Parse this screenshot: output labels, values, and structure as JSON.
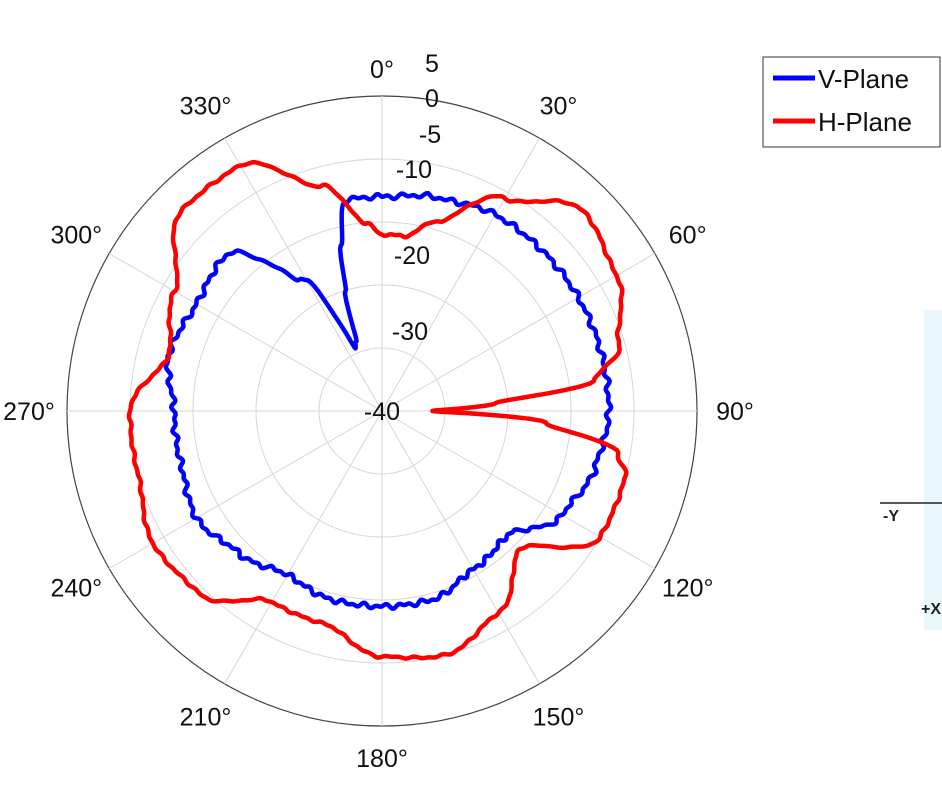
{
  "chart_data": {
    "type": "line",
    "polar": true,
    "angle_ticks": [
      "0°",
      "30°",
      "60°",
      "90°",
      "120°",
      "150°",
      "180°",
      "210°",
      "240°",
      "270°",
      "300°",
      "330°"
    ],
    "radial_ticks": [
      "5",
      "0",
      "-5",
      "-10",
      "-20",
      "-30",
      "-40"
    ],
    "rlim": [
      -40,
      10
    ],
    "grid": true,
    "legend_position": "top-right",
    "series": [
      {
        "name": "V-Plane",
        "color": "#0000ff",
        "theta": [
          0,
          15,
          30,
          45,
          60,
          75,
          90,
          105,
          120,
          135,
          150,
          165,
          180,
          195,
          210,
          225,
          240,
          255,
          270,
          285,
          300,
          315,
          330,
          337,
          340,
          343,
          346,
          350,
          355,
          360
        ],
        "r": [
          -6,
          -5,
          -4,
          -4,
          -4,
          -4,
          -4,
          -5,
          -7,
          -12,
          -11,
          -9,
          -9,
          -9,
          -10,
          -8,
          -6,
          -7,
          -7,
          -5,
          -6,
          -5,
          -16,
          -29,
          -28,
          -20,
          -13,
          -6,
          -6,
          -6
        ]
      },
      {
        "name": "H-Plane",
        "color": "#ff0000",
        "theta": [
          0,
          8,
          15,
          30,
          45,
          60,
          75,
          82,
          86,
          90,
          94,
          100,
          105,
          120,
          135,
          150,
          165,
          180,
          195,
          210,
          225,
          240,
          255,
          270,
          285,
          300,
          315,
          330,
          345,
          355,
          360
        ],
        "r": [
          -12,
          -12,
          -9,
          -1,
          5,
          3,
          -1,
          -6,
          -22,
          -32,
          -14,
          -2,
          0,
          0,
          -9,
          -3,
          0,
          -1,
          -5,
          -5,
          1,
          2,
          0,
          0,
          -5,
          -2,
          5,
          5,
          -3,
          -10,
          -12
        ]
      }
    ]
  },
  "side_labels": {
    "minus_y": "-Y",
    "plus_x": "+X"
  }
}
